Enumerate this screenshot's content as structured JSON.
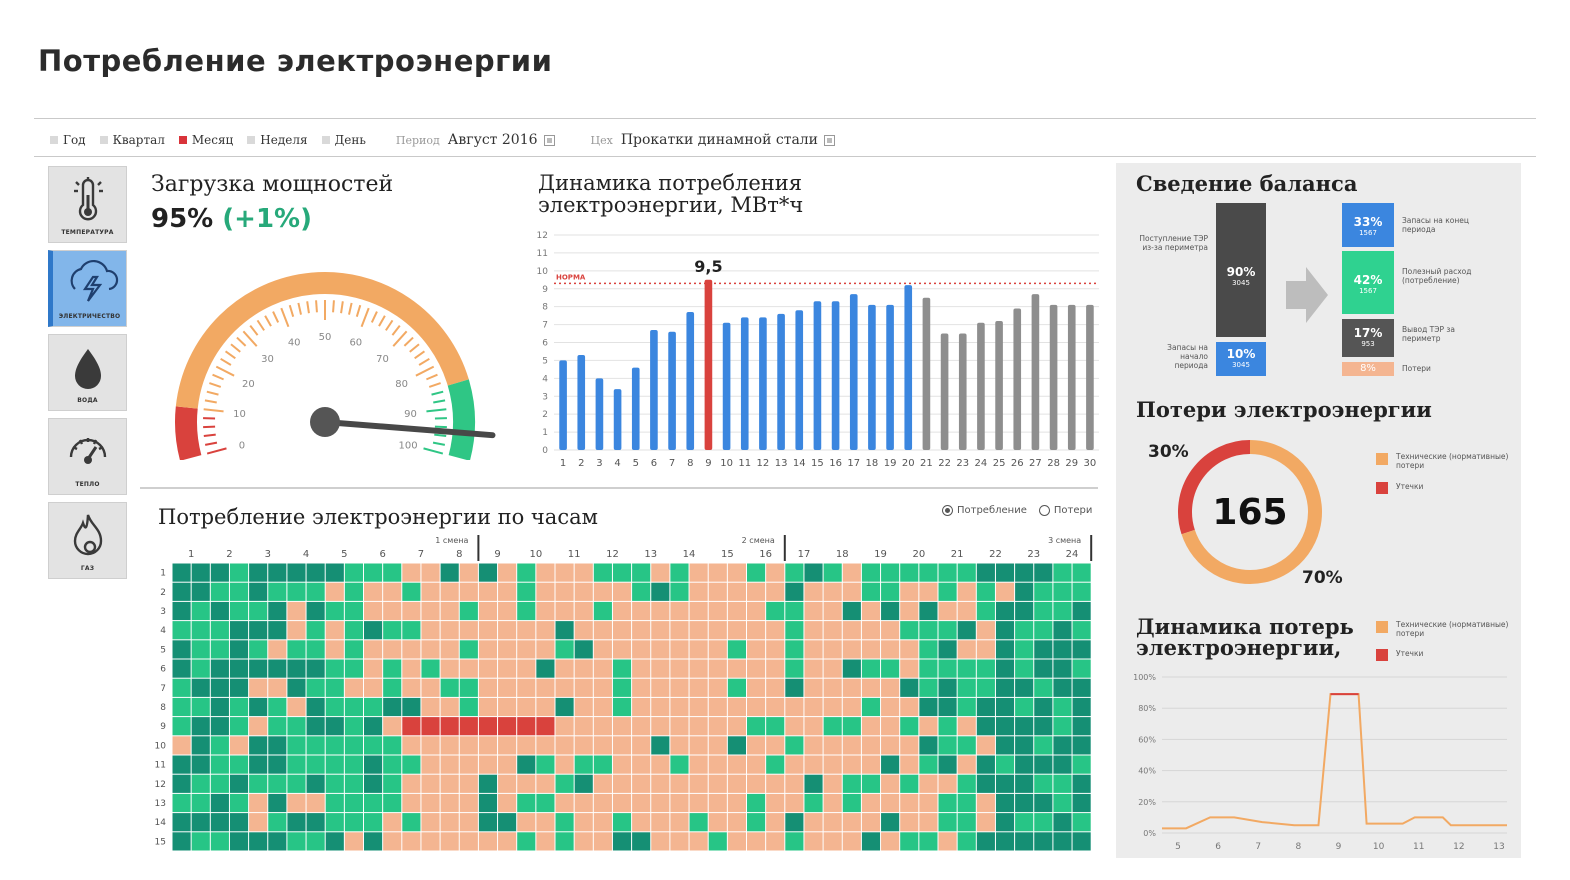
{
  "page": {
    "title": "Потребление электроэнергии"
  },
  "filters": {
    "periods": [
      {
        "label": "Год",
        "active": false
      },
      {
        "label": "Квартал",
        "active": false
      },
      {
        "label": "Месяц",
        "active": true
      },
      {
        "label": "Неделя",
        "active": false
      },
      {
        "label": "День",
        "active": false
      }
    ],
    "period_label": "Период",
    "period_value": "Август 2016",
    "shop_label": "Цех",
    "shop_value": "Прокатки динамной стали"
  },
  "sidebar": {
    "items": [
      {
        "label": "ТЕМПЕРАТУРА",
        "icon": "thermometer-icon",
        "active": false
      },
      {
        "label": "ЭЛЕКТРИЧЕСТВО",
        "icon": "lightning-icon",
        "active": true
      },
      {
        "label": "ВОДА",
        "icon": "water-drop-icon",
        "active": false
      },
      {
        "label": "ТЕПЛО",
        "icon": "gauge-icon",
        "active": false
      },
      {
        "label": "ГАЗ",
        "icon": "flame-icon",
        "active": false
      }
    ]
  },
  "load": {
    "title": "Загрузка мощностей",
    "value": "95%",
    "delta": "(+1%)",
    "gauge": {
      "min": 0,
      "max": 100,
      "value": 95,
      "ticks": [
        "0",
        "10",
        "20",
        "30",
        "40",
        "50",
        "60",
        "70",
        "80",
        "90",
        "100"
      ],
      "zones": [
        {
          "from": 0,
          "to": 10,
          "color": "#d9423d"
        },
        {
          "from": 10,
          "to": 85,
          "color": "#f2a963"
        },
        {
          "from": 85,
          "to": 100,
          "color": "#2fc685"
        }
      ]
    }
  },
  "dynamics": {
    "title_line1": "Динамика потребления",
    "title_line2": "электроэнергии,",
    "unit": "МВт*ч",
    "norm_label": "НОРМА",
    "highlight_label": "9,5"
  },
  "chart_data": [
    {
      "type": "bar",
      "title": "Динамика потребления электроэнергии, МВт*ч",
      "categories": [
        "1",
        "2",
        "3",
        "4",
        "5",
        "6",
        "7",
        "8",
        "9",
        "10",
        "11",
        "12",
        "13",
        "14",
        "15",
        "16",
        "17",
        "18",
        "19",
        "20",
        "21",
        "22",
        "23",
        "24",
        "25",
        "26",
        "27",
        "28",
        "29",
        "30"
      ],
      "values": [
        5.0,
        5.3,
        4.0,
        3.4,
        4.6,
        6.7,
        6.6,
        7.7,
        9.5,
        7.1,
        7.4,
        7.4,
        7.6,
        7.8,
        8.3,
        8.3,
        8.7,
        8.1,
        8.1,
        9.2,
        8.5,
        6.5,
        6.5,
        7.1,
        7.2,
        7.9,
        8.7,
        8.1,
        8.1,
        8.1
      ],
      "bar_colors": [
        "#3b86df",
        "#3b86df",
        "#3b86df",
        "#3b86df",
        "#3b86df",
        "#3b86df",
        "#3b86df",
        "#3b86df",
        "#d9423d",
        "#3b86df",
        "#3b86df",
        "#3b86df",
        "#3b86df",
        "#3b86df",
        "#3b86df",
        "#3b86df",
        "#3b86df",
        "#3b86df",
        "#3b86df",
        "#3b86df",
        "#8e8e8e",
        "#8e8e8e",
        "#8e8e8e",
        "#8e8e8e",
        "#8e8e8e",
        "#8e8e8e",
        "#8e8e8e",
        "#8e8e8e",
        "#8e8e8e",
        "#8e8e8e"
      ],
      "yticks": [
        "0",
        "1",
        "2",
        "3",
        "4",
        "5",
        "6",
        "7",
        "8",
        "9",
        "10",
        "11",
        "12"
      ],
      "ylim": [
        0,
        12
      ],
      "norm": 9.3,
      "data_labels": [
        {
          "index": 8,
          "text": "9,5"
        }
      ],
      "grid": true
    },
    {
      "type": "heatmap",
      "title": "Потребление электроэнергии по часам",
      "x_labels": [
        "1",
        "2",
        "3",
        "4",
        "5",
        "6",
        "7",
        "8",
        "9",
        "10",
        "11",
        "12",
        "13",
        "14",
        "15",
        "16",
        "17",
        "18",
        "19",
        "20",
        "21",
        "22",
        "23",
        "24"
      ],
      "y_labels": [
        "1",
        "2",
        "3",
        "4",
        "5",
        "6",
        "7",
        "8",
        "9",
        "10",
        "11",
        "12",
        "13",
        "14",
        "15"
      ],
      "shifts": [
        "1 смена",
        "2 смена",
        "3 смена"
      ],
      "legend": [
        "Потребление",
        "Потери"
      ],
      "palette": [
        "#158f74",
        "#27c586",
        "#f4b591",
        "#d9423d"
      ]
    },
    {
      "type": "pie",
      "title": "Потери электроэнергии",
      "center_value": "165",
      "slices": [
        {
          "name": "Технические (нормативные) потери",
          "value": 70,
          "label": "70%",
          "color": "#f2a963"
        },
        {
          "name": "Утечки",
          "value": 30,
          "label": "30%",
          "color": "#d9423d"
        }
      ]
    },
    {
      "type": "line",
      "title": "Динамика потерь электроэнергии,",
      "x": [
        "5",
        "6",
        "7",
        "8",
        "9",
        "10",
        "11",
        "12",
        "13"
      ],
      "yticks": [
        "0%",
        "20%",
        "40%",
        "60%",
        "80%",
        "100%"
      ],
      "ylim": [
        0,
        100
      ],
      "series": [
        {
          "name": "Технические (нормативные) потери",
          "color": "#f2a963",
          "points": [
            [
              4.6,
              3
            ],
            [
              5.2,
              3
            ],
            [
              5.8,
              10
            ],
            [
              6.4,
              10
            ],
            [
              7.1,
              7
            ],
            [
              7.9,
              5
            ],
            [
              8.5,
              5
            ],
            [
              8.8,
              89
            ],
            [
              9.5,
              89
            ],
            [
              9.7,
              6
            ],
            [
              10.6,
              6
            ],
            [
              10.9,
              10
            ],
            [
              11.6,
              10
            ],
            [
              11.8,
              5
            ],
            [
              12.5,
              5
            ],
            [
              13.2,
              5
            ]
          ]
        },
        {
          "name": "Утечки",
          "color": "#d9423d",
          "points": [
            [
              8.8,
              89
            ],
            [
              9.5,
              89
            ]
          ]
        }
      ]
    }
  ],
  "heatmap": {
    "title": "Потребление электроэнергии по часам",
    "legend_consumption": "Потребление",
    "legend_losses": "Потери",
    "shift1": "1 смена",
    "shift2": "2 смена",
    "shift3": "3 смена"
  },
  "balance": {
    "title": "Сведение баланса",
    "income_label": "Поступление ТЭР из-за периметра",
    "income_pct": "90%",
    "income_val": "3045",
    "start_label": "Запасы на начало периода",
    "start_pct": "10%",
    "start_val": "3045",
    "out": [
      {
        "pct": "33%",
        "val": "1567",
        "label": "Запасы на конец периода",
        "color": "#3b86df"
      },
      {
        "pct": "42%",
        "val": "1567",
        "label": "Полезный расход (потребление)",
        "color": "#2fd290"
      },
      {
        "pct": "17%",
        "val": "953",
        "label": "Вывод ТЭР за периметр",
        "color": "#555555"
      },
      {
        "pct": "8%",
        "val": "",
        "label": "Потери",
        "color": "#f4b591"
      }
    ]
  },
  "losses": {
    "title": "Потери электроэнергии",
    "center": "165",
    "pct_leak": "30%",
    "pct_tech": "70%",
    "legend_tech": "Технические (нормативные) потери",
    "legend_leak": "Утечки"
  },
  "losses_dyn": {
    "title_line1": "Динамика потерь",
    "title_line2": "электроэнергии,",
    "legend_tech": "Технические (нормативные) потери",
    "legend_leak": "Утечки"
  },
  "colors": {
    "accent_blue": "#3b86df",
    "red": "#d9423d",
    "orange": "#f2a963",
    "green": "#2fc685",
    "dark_green": "#158f74",
    "peach": "#f4b591",
    "gray": "#8e8e8e"
  }
}
